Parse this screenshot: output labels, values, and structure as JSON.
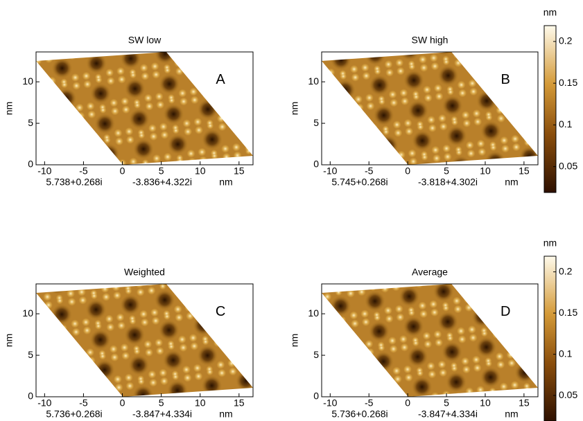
{
  "chart_data": [
    {
      "type": "heatmap",
      "title": "SW low",
      "label": "A",
      "xlim": [
        -11.1,
        16.8
      ],
      "ylim": [
        0,
        13.6
      ],
      "xticks": [
        -10,
        -5,
        0,
        5,
        10,
        15
      ],
      "yticks": [
        0,
        5,
        10
      ],
      "ylabel": "nm",
      "vectors": [
        "5.738+0.268i",
        "-3.836+4.322i"
      ],
      "xunit": "nm"
    },
    {
      "type": "heatmap",
      "title": "SW high",
      "label": "B",
      "xlim": [
        -11.1,
        16.8
      ],
      "ylim": [
        0,
        13.6
      ],
      "xticks": [
        -10,
        -5,
        0,
        5,
        10,
        15
      ],
      "yticks": [
        0,
        5,
        10
      ],
      "ylabel": "nm",
      "vectors": [
        "5.745+0.268i",
        "-3.818+4.302i"
      ],
      "xunit": "nm",
      "colorbar": {
        "label": "nm",
        "lim": [
          0.019,
          0.219
        ],
        "ticks": [
          0.05,
          0.1,
          0.15,
          0.2
        ]
      }
    },
    {
      "type": "heatmap",
      "title": "Weighted",
      "label": "C",
      "xlim": [
        -11.1,
        16.8
      ],
      "ylim": [
        0,
        13.6
      ],
      "xticks": [
        -10,
        -5,
        0,
        5,
        10,
        15
      ],
      "yticks": [
        0,
        5,
        10
      ],
      "ylabel": "nm",
      "vectors": [
        "5.736+0.268i",
        "-3.847+4.334i"
      ],
      "xunit": "nm"
    },
    {
      "type": "heatmap",
      "title": "Average",
      "label": "D",
      "xlim": [
        -11.1,
        16.8
      ],
      "ylim": [
        0,
        13.6
      ],
      "xticks": [
        -10,
        -5,
        0,
        5,
        10,
        15
      ],
      "yticks": [
        0,
        5,
        10
      ],
      "ylabel": "nm",
      "vectors": [
        "5.736+0.268i",
        "-3.847+4.334i"
      ],
      "xunit": "nm",
      "colorbar": {
        "label": "nm",
        "lim": [
          0.019,
          0.219
        ],
        "ticks": [
          0.05,
          0.1,
          0.15,
          0.2
        ]
      }
    }
  ]
}
